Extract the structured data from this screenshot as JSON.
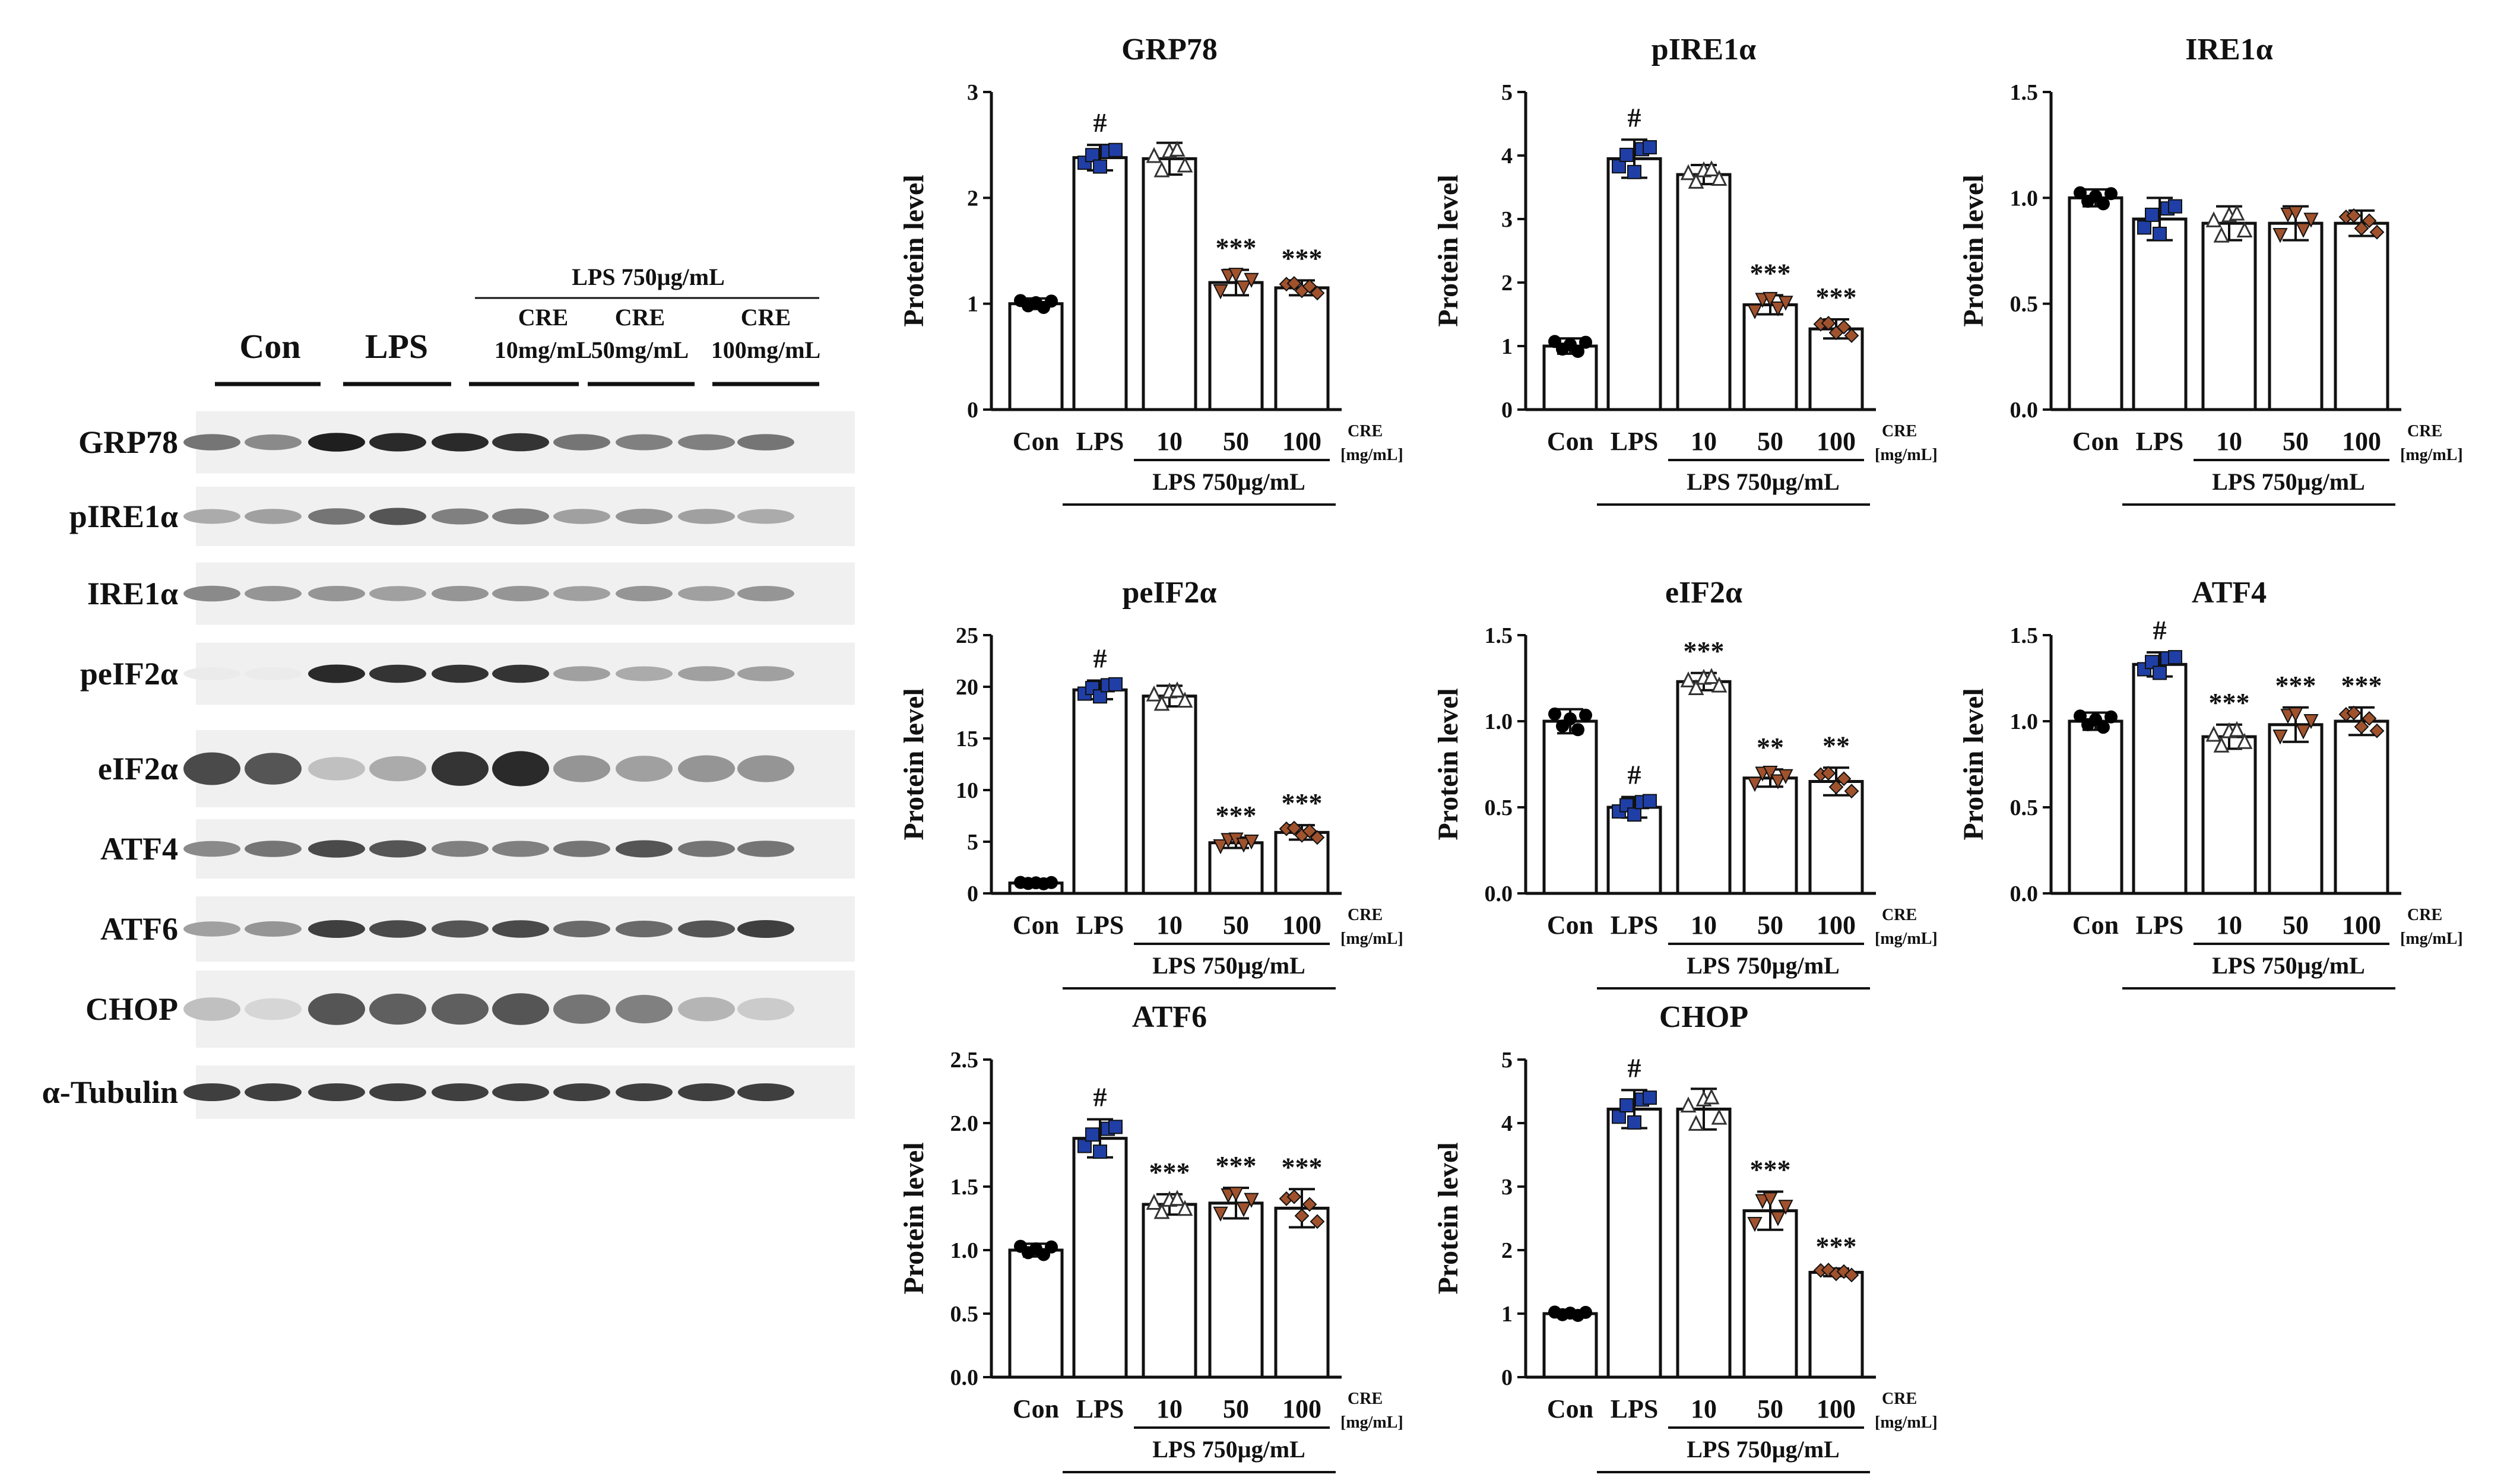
{
  "blot": {
    "treatment_header": "LPS 750µg/mL",
    "groups": [
      {
        "line1": "Con",
        "line2": ""
      },
      {
        "line1": "LPS",
        "line2": ""
      },
      {
        "line1": "CRE",
        "line2": "10mg/mL"
      },
      {
        "line1": "CRE",
        "line2": "50mg/mL"
      },
      {
        "line1": "CRE",
        "line2": "100mg/mL"
      }
    ],
    "proteins": [
      {
        "label": "GRP78",
        "intensity": [
          0.55,
          0.45,
          0.95,
          0.9,
          0.9,
          0.85,
          0.55,
          0.5,
          0.5,
          0.55
        ]
      },
      {
        "label": "pIRE1α",
        "intensity": [
          0.3,
          0.35,
          0.55,
          0.7,
          0.5,
          0.5,
          0.35,
          0.4,
          0.35,
          0.3
        ]
      },
      {
        "label": "IRE1α",
        "intensity": [
          0.45,
          0.4,
          0.4,
          0.35,
          0.4,
          0.4,
          0.35,
          0.4,
          0.35,
          0.4
        ]
      },
      {
        "label": "peIF2α",
        "intensity": [
          0.0,
          0.0,
          0.9,
          0.85,
          0.85,
          0.85,
          0.35,
          0.3,
          0.35,
          0.35
        ]
      },
      {
        "label": "eIF2α",
        "intensity": [
          0.75,
          0.7,
          0.2,
          0.3,
          0.85,
          0.9,
          0.4,
          0.35,
          0.4,
          0.4
        ]
      },
      {
        "label": "ATF4",
        "intensity": [
          0.45,
          0.55,
          0.75,
          0.7,
          0.5,
          0.5,
          0.55,
          0.7,
          0.55,
          0.55
        ]
      },
      {
        "label": "ATF6",
        "intensity": [
          0.35,
          0.4,
          0.8,
          0.75,
          0.7,
          0.75,
          0.6,
          0.6,
          0.7,
          0.8
        ]
      },
      {
        "label": "CHOP",
        "intensity": [
          0.2,
          0.1,
          0.7,
          0.65,
          0.65,
          0.7,
          0.55,
          0.5,
          0.25,
          0.15
        ]
      },
      {
        "label": "α-Tubulin",
        "intensity": [
          0.8,
          0.8,
          0.8,
          0.8,
          0.8,
          0.8,
          0.8,
          0.8,
          0.8,
          0.8
        ]
      }
    ]
  },
  "chart_common": {
    "ylabel": "Protein level",
    "categories": [
      "Con",
      "LPS",
      "10",
      "50",
      "100"
    ],
    "treatment_label": "LPS 750µg/mL",
    "cre_label_top": "CRE",
    "cre_label_bottom": "[mg/mL]",
    "series_colors": [
      "#000000",
      "#1f3fa6",
      "#7a7a7a",
      "#a0522d",
      "#a0522d"
    ],
    "marker_shapes": [
      "circle",
      "square",
      "triangle-up",
      "triangle-down",
      "diamond"
    ]
  },
  "chart_data": [
    {
      "type": "bar",
      "title": "GRP78",
      "ylabel": "Protein level",
      "categories": [
        "Con",
        "LPS",
        "10",
        "50",
        "100"
      ],
      "values": [
        1.0,
        2.38,
        2.37,
        1.2,
        1.15
      ],
      "errors": [
        0.05,
        0.12,
        0.15,
        0.12,
        0.07
      ],
      "annotations": [
        "",
        "#",
        "",
        "***",
        "***"
      ],
      "ylim": [
        0,
        3
      ],
      "yticks": [
        "0",
        "1",
        "2",
        "3"
      ],
      "grid": false
    },
    {
      "type": "bar",
      "title": "pIRE1α",
      "ylabel": "Protein level",
      "categories": [
        "Con",
        "LPS",
        "10",
        "50",
        "100"
      ],
      "values": [
        1.0,
        3.95,
        3.7,
        1.65,
        1.27
      ],
      "errors": [
        0.12,
        0.3,
        0.15,
        0.15,
        0.15
      ],
      "annotations": [
        "",
        "#",
        "",
        "***",
        "***"
      ],
      "ylim": [
        0,
        5
      ],
      "yticks": [
        "0",
        "1",
        "2",
        "3",
        "4",
        "5"
      ],
      "grid": false
    },
    {
      "type": "bar",
      "title": "IRE1α",
      "ylabel": "Protein level",
      "categories": [
        "Con",
        "LPS",
        "10",
        "50",
        "100"
      ],
      "values": [
        1.0,
        0.9,
        0.88,
        0.88,
        0.88
      ],
      "errors": [
        0.04,
        0.1,
        0.08,
        0.08,
        0.06
      ],
      "annotations": [
        "",
        "",
        "",
        "",
        ""
      ],
      "ylim": [
        0,
        1.5
      ],
      "yticks": [
        "0.0",
        "0.5",
        "1.0",
        "1.5"
      ],
      "grid": false
    },
    {
      "type": "bar",
      "title": "peIF2α",
      "ylabel": "Protein level",
      "categories": [
        "Con",
        "LPS",
        "10",
        "50",
        "100"
      ],
      "values": [
        1.0,
        19.7,
        19.1,
        4.9,
        5.9
      ],
      "errors": [
        0.1,
        0.9,
        1.0,
        0.5,
        0.7
      ],
      "annotations": [
        "",
        "#",
        "",
        "***",
        "***"
      ],
      "ylim": [
        0,
        25
      ],
      "yticks": [
        "0",
        "5",
        "10",
        "15",
        "20",
        "25"
      ],
      "grid": false
    },
    {
      "type": "bar",
      "title": "eIF2α",
      "ylabel": "Protein level",
      "categories": [
        "Con",
        "LPS",
        "10",
        "50",
        "100"
      ],
      "values": [
        1.0,
        0.5,
        1.23,
        0.67,
        0.65
      ],
      "errors": [
        0.07,
        0.06,
        0.05,
        0.05,
        0.08
      ],
      "annotations": [
        "",
        "#",
        "***",
        "**",
        "**"
      ],
      "ylim": [
        0,
        1.5
      ],
      "yticks": [
        "0.0",
        "0.5",
        "1.0",
        "1.5"
      ],
      "grid": false
    },
    {
      "type": "bar",
      "title": "ATF4",
      "ylabel": "Protein level",
      "categories": [
        "Con",
        "LPS",
        "10",
        "50",
        "100"
      ],
      "values": [
        1.0,
        1.33,
        0.91,
        0.98,
        1.0
      ],
      "errors": [
        0.05,
        0.07,
        0.07,
        0.1,
        0.08
      ],
      "annotations": [
        "",
        "#",
        "***",
        "***",
        "***"
      ],
      "ylim": [
        0,
        1.5
      ],
      "yticks": [
        "0.0",
        "0.5",
        "1.0",
        "1.5"
      ],
      "grid": false
    },
    {
      "type": "bar",
      "title": "ATF6",
      "ylabel": "Protein level",
      "categories": [
        "Con",
        "LPS",
        "10",
        "50",
        "100"
      ],
      "values": [
        1.0,
        1.88,
        1.36,
        1.37,
        1.33
      ],
      "errors": [
        0.05,
        0.15,
        0.08,
        0.12,
        0.15
      ],
      "annotations": [
        "",
        "#",
        "***",
        "***",
        "***"
      ],
      "ylim": [
        0,
        2.5
      ],
      "yticks": [
        "0.0",
        "0.5",
        "1.0",
        "1.5",
        "2.0",
        "2.5"
      ],
      "grid": false
    },
    {
      "type": "bar",
      "title": "CHOP",
      "ylabel": "Protein level",
      "categories": [
        "Con",
        "LPS",
        "10",
        "50",
        "100"
      ],
      "values": [
        1.0,
        4.22,
        4.22,
        2.62,
        1.65
      ],
      "errors": [
        0.04,
        0.3,
        0.32,
        0.3,
        0.06
      ],
      "annotations": [
        "",
        "#",
        "",
        "***",
        "***"
      ],
      "ylim": [
        0,
        5
      ],
      "yticks": [
        "0",
        "1",
        "2",
        "3",
        "4",
        "5"
      ],
      "grid": false
    }
  ]
}
